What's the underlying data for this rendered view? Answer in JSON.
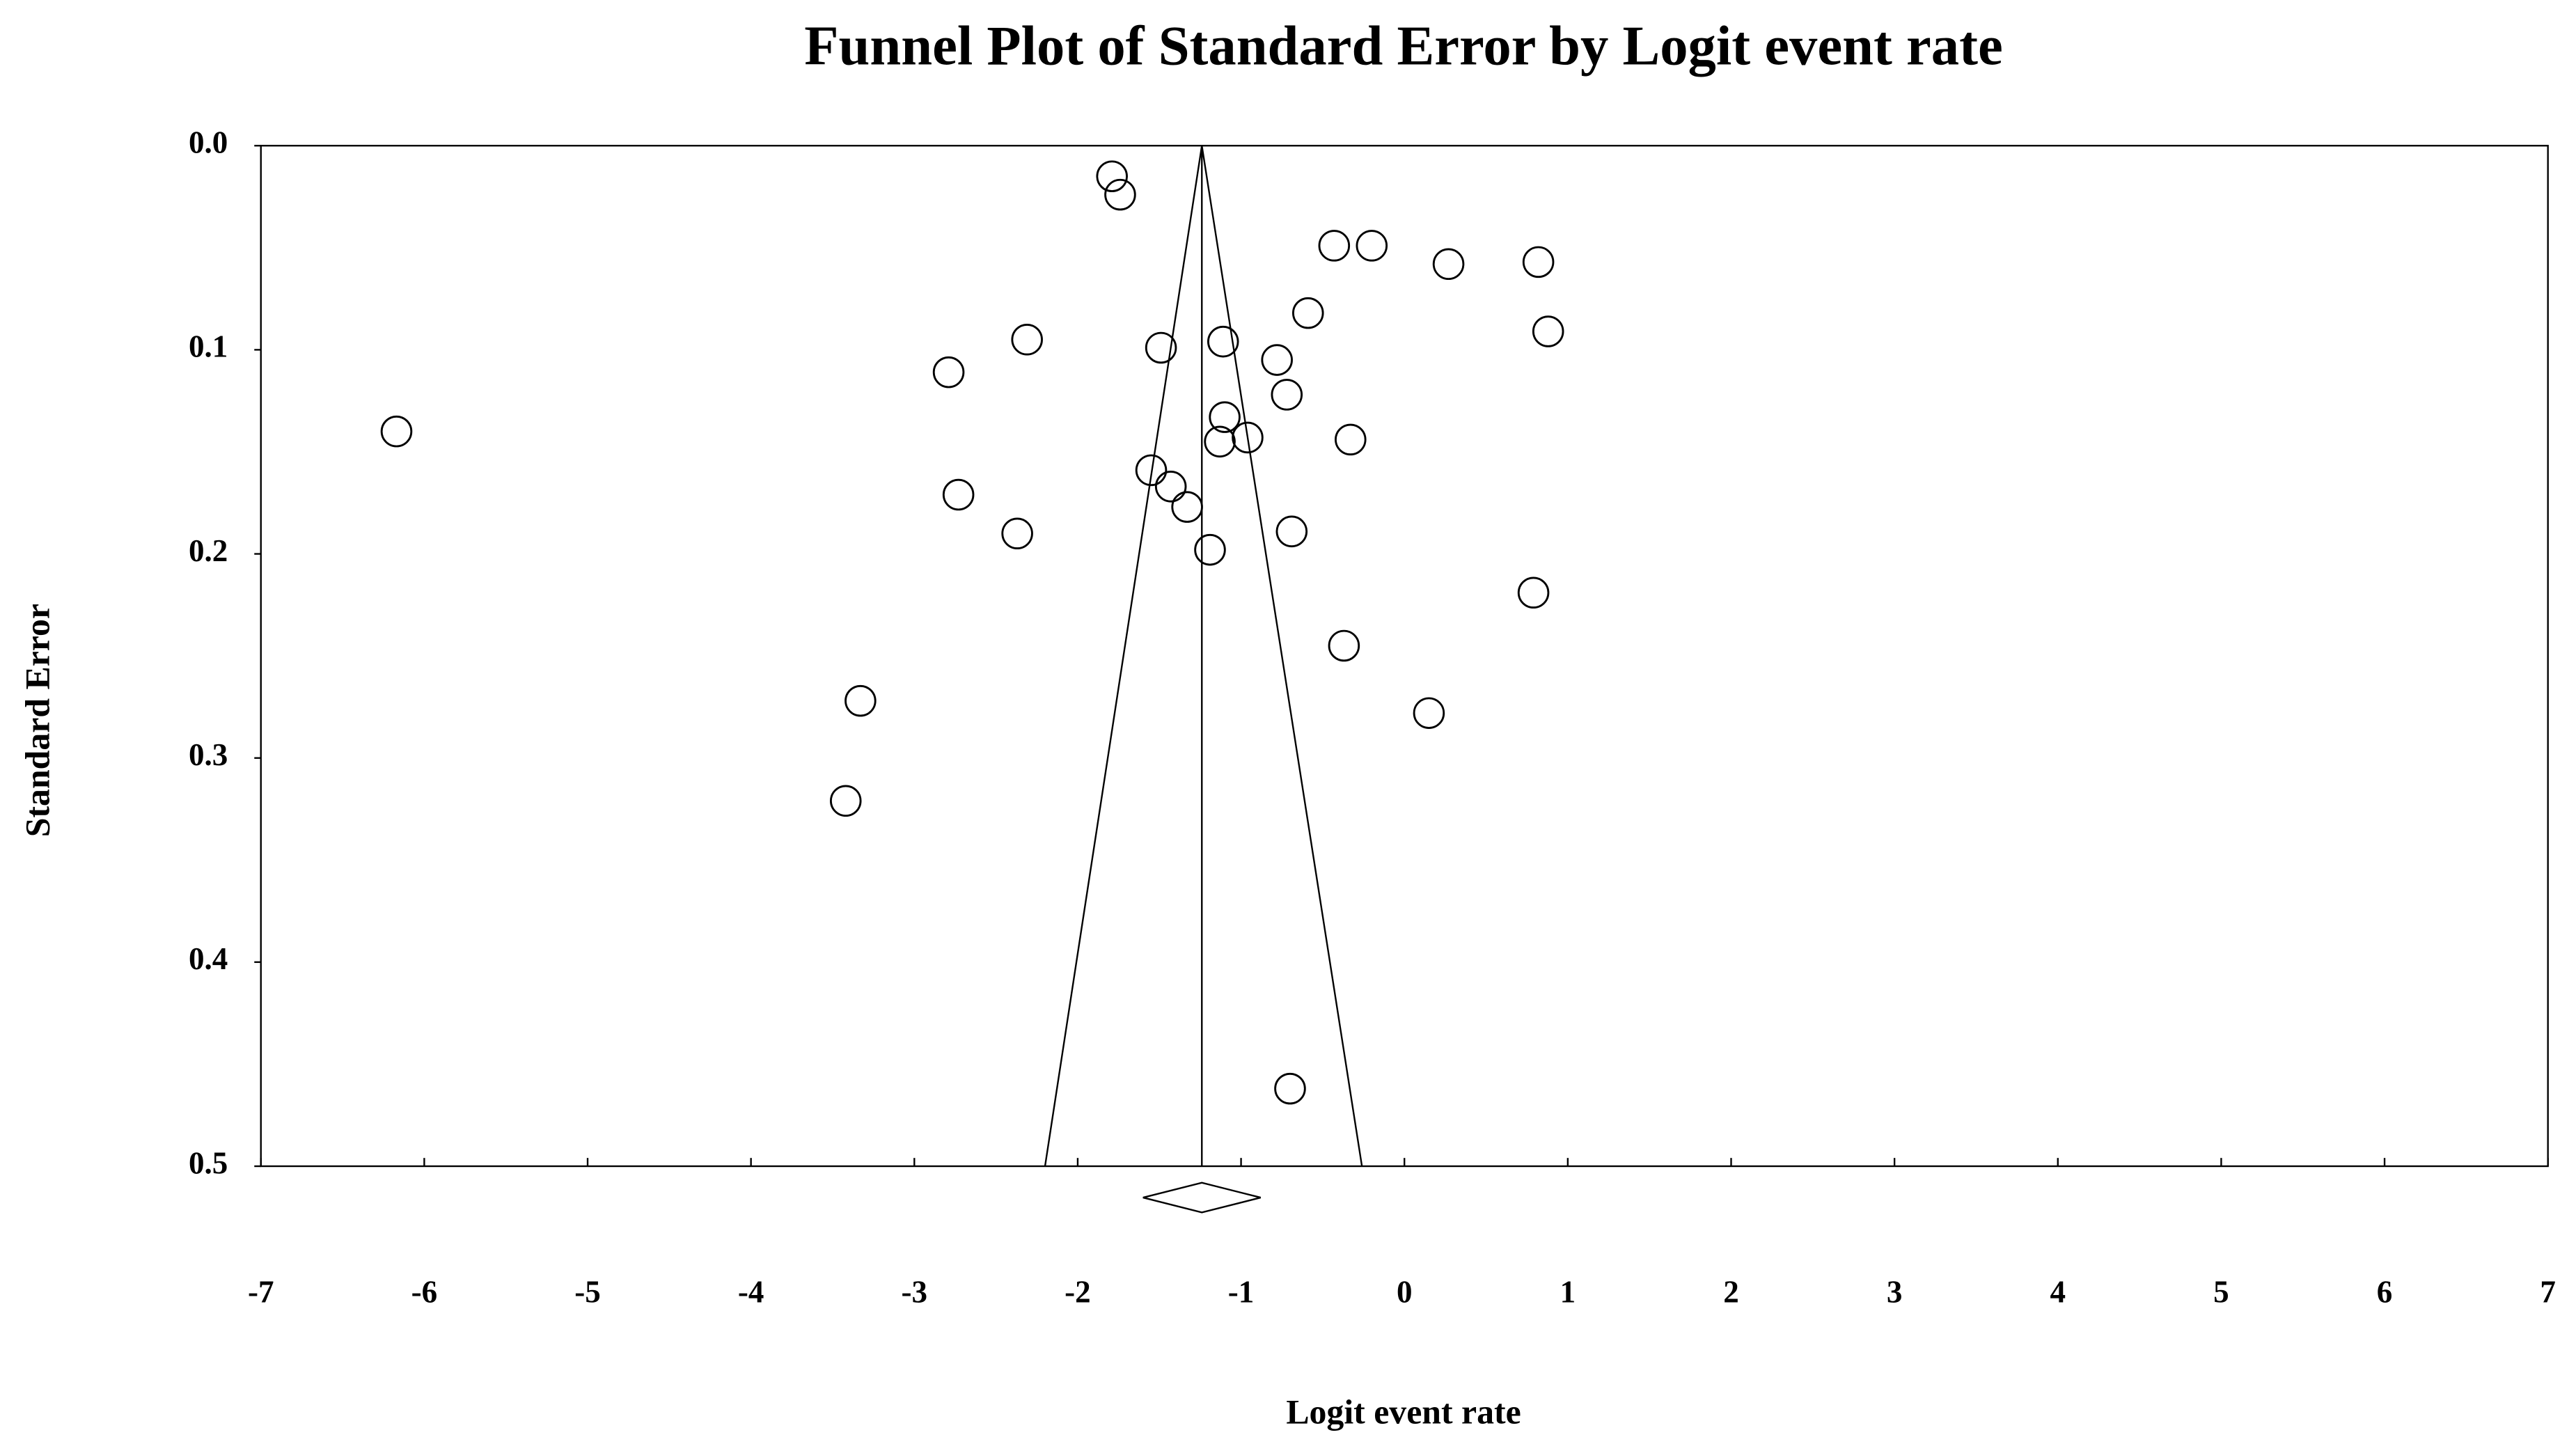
{
  "chart_data": {
    "type": "scatter",
    "title": "Funnel Plot of Standard Error by Logit event rate",
    "x_label": "Logit event rate",
    "y_label": "Standard Error",
    "x": [
      -1.79,
      -1.74,
      -0.43,
      -0.2,
      0.27,
      0.82,
      -0.59,
      0.88,
      -2.31,
      -1.49,
      -1.11,
      -0.78,
      -2.79,
      -0.72,
      -1.1,
      -6.17,
      -1.13,
      -0.96,
      -0.33,
      -1.55,
      -1.43,
      -2.73,
      -1.33,
      -2.37,
      -0.69,
      -1.19,
      0.79,
      -0.37,
      -3.33,
      0.15,
      -3.42,
      -0.7
    ],
    "values": [
      0.015,
      0.024,
      0.049,
      0.049,
      0.058,
      0.057,
      0.082,
      0.091,
      0.095,
      0.099,
      0.096,
      0.105,
      0.111,
      0.122,
      0.133,
      0.14,
      0.145,
      0.143,
      0.144,
      0.159,
      0.167,
      0.171,
      0.177,
      0.19,
      0.189,
      0.198,
      0.219,
      0.245,
      0.272,
      0.278,
      0.321,
      0.462
    ],
    "color": "#000000",
    "summary": {
      "estimate": -1.24,
      "ci": [
        -1.6,
        -0.88
      ]
    },
    "funnel_bottom": [
      -2.2,
      -0.26
    ],
    "xlim": [
      -7,
      7
    ],
    "ylim": [
      0,
      0.5
    ],
    "y_inverted": true,
    "xticks": [
      -7,
      -6,
      -5,
      -4,
      -3,
      -2,
      -1,
      0,
      1,
      2,
      3,
      4,
      5,
      6,
      7
    ],
    "yticks": [
      {
        "value": 0,
        "label": "0.0"
      },
      0.1,
      0.2,
      0.3,
      0.4,
      0.5
    ],
    "grid": false
  }
}
